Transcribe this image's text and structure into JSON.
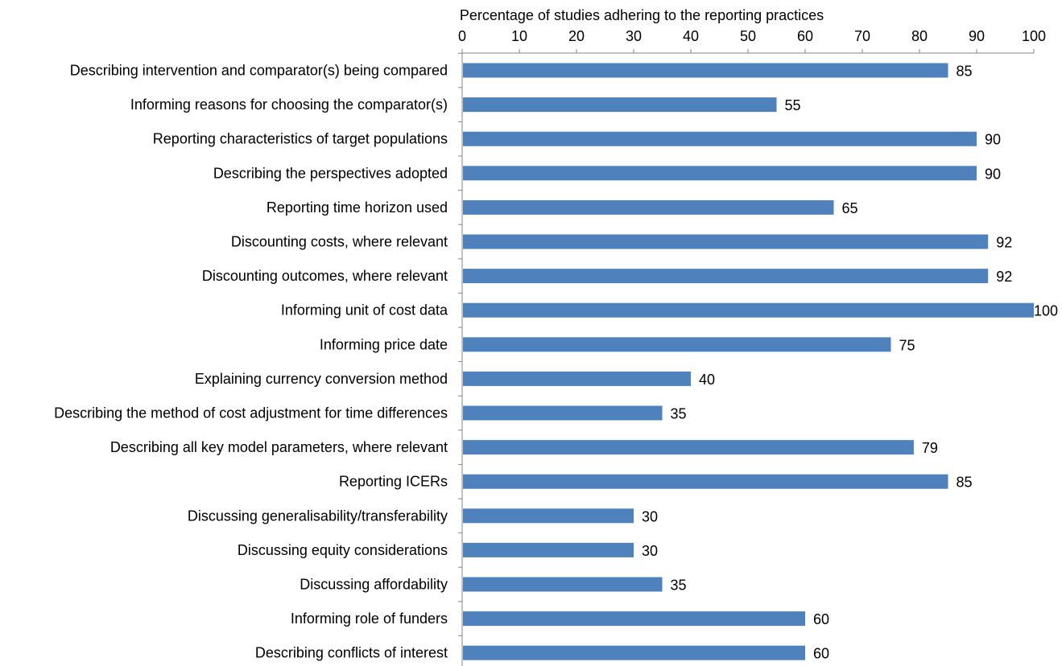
{
  "chart_data": {
    "type": "bar",
    "orientation": "horizontal",
    "xlabel": "Percentage of studies adhering to the reporting practices",
    "xlabel_position": "top",
    "xlim": [
      0,
      100
    ],
    "xticks": [
      0,
      10,
      20,
      30,
      40,
      50,
      60,
      70,
      80,
      90,
      100
    ],
    "grid": false,
    "legend": "none",
    "bar_color": "#4F81BD",
    "categories": [
      "Describing intervention and comparator(s) being compared",
      "Informing reasons for choosing the comparator(s)",
      "Reporting characteristics of target populations",
      "Describing the perspectives adopted",
      "Reporting time horizon used",
      "Discounting costs, where relevant",
      "Discounting outcomes, where relevant",
      "Informing unit of cost data",
      "Informing price date",
      "Explaining currency conversion method",
      "Describing the method of cost adjustment for time differences",
      "Describing all key model parameters, where relevant",
      "Reporting ICERs",
      "Discussing generalisability/transferability",
      "Discussing equity considerations",
      "Discussing affordability",
      "Informing role of funders",
      "Describing conflicts of interest"
    ],
    "values": [
      85,
      55,
      90,
      90,
      65,
      92,
      92,
      100,
      75,
      40,
      35,
      79,
      85,
      30,
      30,
      35,
      60,
      60
    ]
  }
}
